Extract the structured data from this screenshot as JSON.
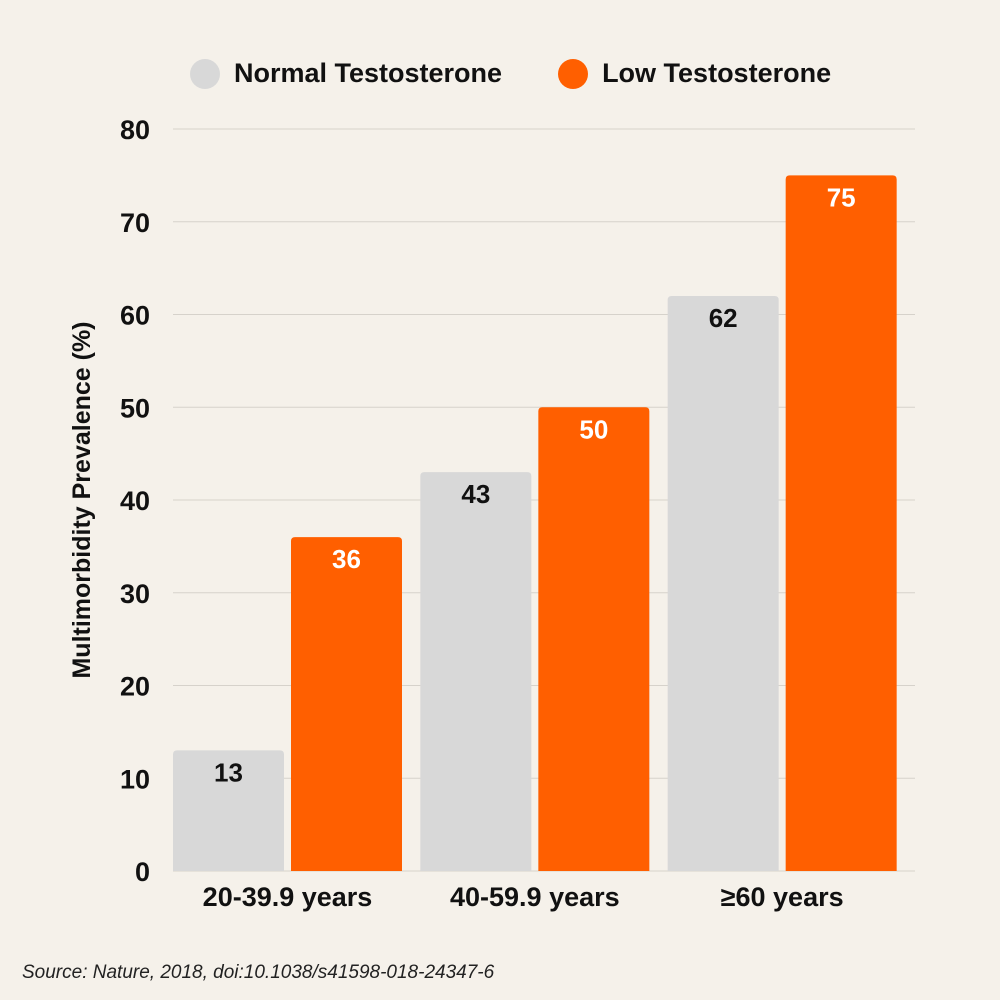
{
  "legend": {
    "normal_label": "Normal Testosterone",
    "low_label": "Low Testosterone"
  },
  "source": "Source: Nature, 2018, doi:10.1038/s41598-018-24347-6",
  "colors": {
    "normal": "#d8d8d8",
    "low": "#ff5f00",
    "background": "#f5f1ea",
    "grid": "#d6d2cb"
  },
  "chart_data": {
    "type": "bar",
    "categories": [
      "20-39.9 years",
      "40-59.9 years",
      "≥60 years"
    ],
    "series": [
      {
        "name": "Normal Testosterone",
        "values": [
          13,
          43,
          62
        ]
      },
      {
        "name": "Low Testosterone",
        "values": [
          36,
          50,
          75
        ]
      }
    ],
    "ylabel": "Multimorbidity Prevalence (%)",
    "xlabel": "",
    "ylim": [
      0,
      80
    ],
    "yticks": [
      0,
      10,
      20,
      30,
      40,
      50,
      60,
      70,
      80
    ],
    "grid": true,
    "legend_position": "top"
  }
}
